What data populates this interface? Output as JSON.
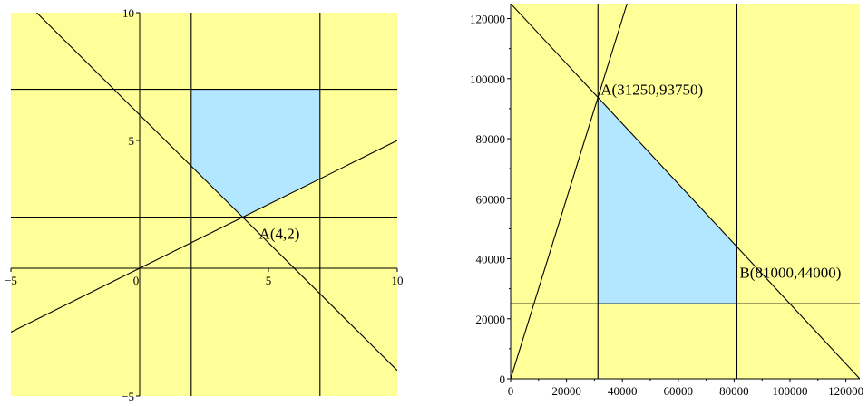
{
  "colors": {
    "background": "#ffff99",
    "feasible_region": "#b3e6ff",
    "line": "#000000"
  },
  "chart_data": [
    {
      "type": "line",
      "name": "left-plot",
      "xlim": [
        -5,
        10
      ],
      "ylim": [
        -5,
        10
      ],
      "x_ticks": [
        -5,
        0,
        5,
        10
      ],
      "y_ticks": [
        -5,
        5,
        10
      ],
      "x_tick_labels": [
        "-5",
        "0",
        "5",
        "10"
      ],
      "y_tick_labels": [
        "-5",
        "5",
        "10"
      ],
      "lines": [
        {
          "kind": "vertical",
          "x": 2
        },
        {
          "kind": "vertical",
          "x": 7
        },
        {
          "kind": "horizontal",
          "y": 7
        },
        {
          "kind": "horizontal",
          "y": 2
        },
        {
          "kind": "segment",
          "from": [
            -5,
            -2.5
          ],
          "to": [
            10,
            5
          ]
        },
        {
          "kind": "segment",
          "from": [
            -4,
            10
          ],
          "to": [
            10,
            -4
          ]
        }
      ],
      "feasible_region": [
        [
          2,
          7
        ],
        [
          7,
          7
        ],
        [
          7,
          3.5
        ],
        [
          4,
          2
        ],
        [
          2,
          4
        ]
      ],
      "annotations": [
        {
          "text": "A(4,2)",
          "x": 4,
          "y": 2
        }
      ],
      "grid": false
    },
    {
      "type": "line",
      "name": "right-plot",
      "xlim": [
        0,
        125000
      ],
      "ylim": [
        0,
        125000
      ],
      "x_ticks": [
        0,
        20000,
        40000,
        60000,
        80000,
        100000,
        120000
      ],
      "y_ticks": [
        0,
        20000,
        40000,
        60000,
        80000,
        100000,
        120000
      ],
      "x_tick_labels": [
        "0",
        "20000",
        "40000",
        "60000",
        "80000",
        "100000",
        "120000"
      ],
      "y_tick_labels": [
        "0",
        "20000",
        "40000",
        "60000",
        "80000",
        "100000",
        "120000"
      ],
      "lines": [
        {
          "kind": "vertical",
          "x": 31250
        },
        {
          "kind": "vertical",
          "x": 81000
        },
        {
          "kind": "horizontal",
          "y": 25000
        },
        {
          "kind": "segment",
          "from": [
            0,
            125000
          ],
          "to": [
            125000,
            0
          ]
        },
        {
          "kind": "segment",
          "from": [
            0,
            0
          ],
          "to": [
            41667,
            125000
          ]
        }
      ],
      "feasible_region": [
        [
          31250,
          93750
        ],
        [
          81000,
          44000
        ],
        [
          81000,
          25000
        ],
        [
          31250,
          25000
        ]
      ],
      "annotations": [
        {
          "text": "A(31250,93750)",
          "x": 31250,
          "y": 93750
        },
        {
          "text": "B(81000,44000)",
          "x": 81000,
          "y": 44000
        }
      ],
      "grid": false
    }
  ]
}
